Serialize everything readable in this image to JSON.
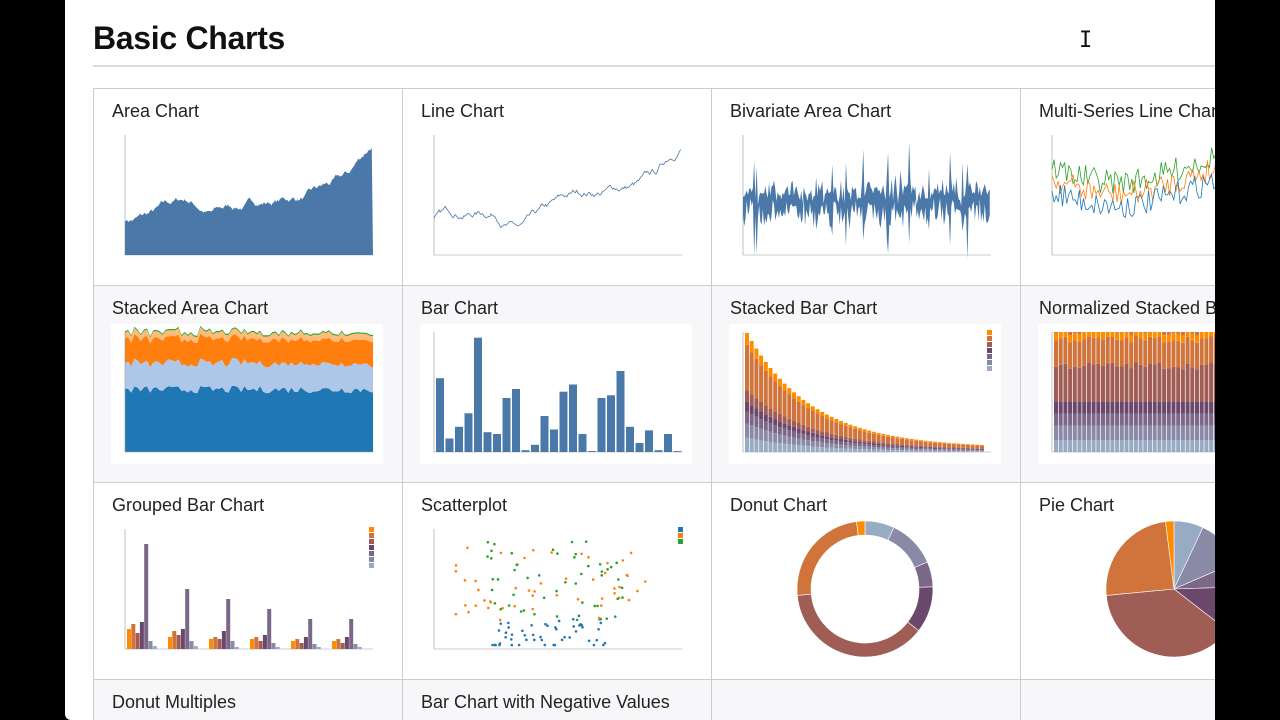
{
  "page": {
    "title": "Basic Charts",
    "charts": [
      {
        "label": "Area Chart",
        "kind": "area"
      },
      {
        "label": "Line Chart",
        "kind": "line"
      },
      {
        "label": "Bivariate Area Chart",
        "kind": "bivariate"
      },
      {
        "label": "Multi-Series Line Chart",
        "kind": "multiline"
      },
      {
        "label": "Stacked Area Chart",
        "kind": "stackedarea"
      },
      {
        "label": "Bar Chart",
        "kind": "bar"
      },
      {
        "label": "Stacked Bar Chart",
        "kind": "stackedbar"
      },
      {
        "label": "Normalized Stacked Bar Chart",
        "kind": "normbar"
      },
      {
        "label": "Grouped Bar Chart",
        "kind": "grouped"
      },
      {
        "label": "Scatterplot",
        "kind": "scatter"
      },
      {
        "label": "Donut Chart",
        "kind": "donut"
      },
      {
        "label": "Pie Chart",
        "kind": "pie"
      },
      {
        "label": "Donut Multiples",
        "kind": "none"
      },
      {
        "label": "Bar Chart with Negative Values",
        "kind": "none"
      },
      {
        "label": "",
        "kind": "none"
      },
      {
        "label": "",
        "kind": "none"
      }
    ]
  },
  "colors": {
    "blue": "#4a78a8",
    "age_palette": [
      "#98abc5",
      "#8a89a6",
      "#7b6888",
      "#6b486b",
      "#a05d56",
      "#d0743c",
      "#ff8c00"
    ],
    "category10": [
      "#1f77b4",
      "#ff7f0e",
      "#2ca02c",
      "#aec7e8",
      "#ffbb78"
    ]
  }
}
